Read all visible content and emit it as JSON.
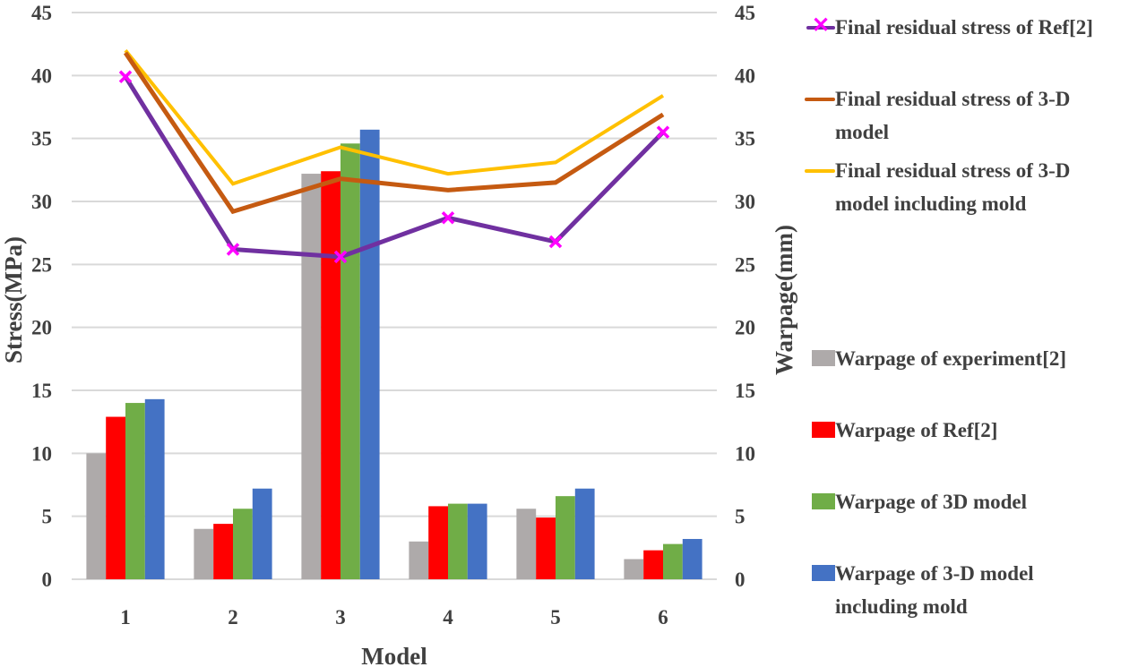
{
  "chart_data": {
    "type": "bar",
    "combo": "bar+line",
    "title": "",
    "xlabel": "Model",
    "ylabel": "Stress(MPa)",
    "y2label": "Warpage(mm)",
    "categories": [
      "1",
      "2",
      "3",
      "4",
      "5",
      "6"
    ],
    "ylim": [
      0,
      45
    ],
    "y2lim": [
      0,
      45
    ],
    "yticks": [
      0,
      5,
      10,
      15,
      20,
      25,
      30,
      35,
      40,
      45
    ],
    "y2ticks": [
      0,
      5,
      10,
      15,
      20,
      25,
      30,
      35,
      40,
      45
    ],
    "grid": true,
    "legend_position": "right",
    "bar_series": [
      {
        "name": "Warpage of experiment[2]",
        "axis": "right",
        "color": "#AEAAAA",
        "values": [
          10.0,
          4.0,
          32.2,
          3.0,
          5.6,
          1.6
        ]
      },
      {
        "name": "Warpage of Ref[2]",
        "axis": "right",
        "color": "#FF0000",
        "values": [
          12.9,
          4.4,
          32.4,
          5.8,
          4.9,
          2.3
        ]
      },
      {
        "name": "Warpage of 3D model",
        "axis": "right",
        "color": "#70AD47",
        "values": [
          14.0,
          5.6,
          34.6,
          6.0,
          6.6,
          2.8
        ]
      },
      {
        "name": "Warpage of 3-D model including mold",
        "axis": "right",
        "color": "#4472C4",
        "values": [
          14.3,
          7.2,
          35.7,
          6.0,
          7.2,
          3.2
        ]
      }
    ],
    "line_series": [
      {
        "name": "Final residual stress of Ref[2]",
        "axis": "left",
        "color": "#7030A0",
        "marker": "x",
        "marker_color": "#FF00FF",
        "values": [
          39.9,
          26.2,
          25.6,
          28.7,
          26.8,
          35.5
        ]
      },
      {
        "name": "Final residual stress of 3-D model",
        "axis": "left",
        "color": "#C55A11",
        "marker": "none",
        "values": [
          41.8,
          29.2,
          31.8,
          30.9,
          31.5,
          36.9
        ]
      },
      {
        "name": "Final residual stress of 3-D model including mold",
        "axis": "left",
        "color": "#FFC000",
        "marker": "none",
        "values": [
          42.0,
          31.4,
          34.3,
          32.2,
          33.1,
          38.4
        ]
      }
    ]
  },
  "legend": {
    "line_items": [
      {
        "label": "Final residual stress of Ref[2]",
        "icon": "line-with-x-marker-icon",
        "color": "#7030A0",
        "marker_color": "#FF00FF",
        "marker_glyph": "✕"
      },
      {
        "label": "Final residual stress of 3-D model",
        "icon": "line-icon",
        "color": "#C55A11"
      },
      {
        "label": "Final residual stress of 3-D model including mold",
        "icon": "line-icon",
        "color": "#FFC000"
      }
    ],
    "bar_items": [
      {
        "label": "Warpage of experiment[2]",
        "icon": "square-icon",
        "color": "#AEAAAA"
      },
      {
        "label": "Warpage of Ref[2]",
        "icon": "square-icon",
        "color": "#FF0000"
      },
      {
        "label": "Warpage of 3D model",
        "icon": "square-icon",
        "color": "#70AD47"
      },
      {
        "label": "Warpage of 3-D model including mold",
        "icon": "square-icon",
        "color": "#4472C4"
      }
    ]
  }
}
